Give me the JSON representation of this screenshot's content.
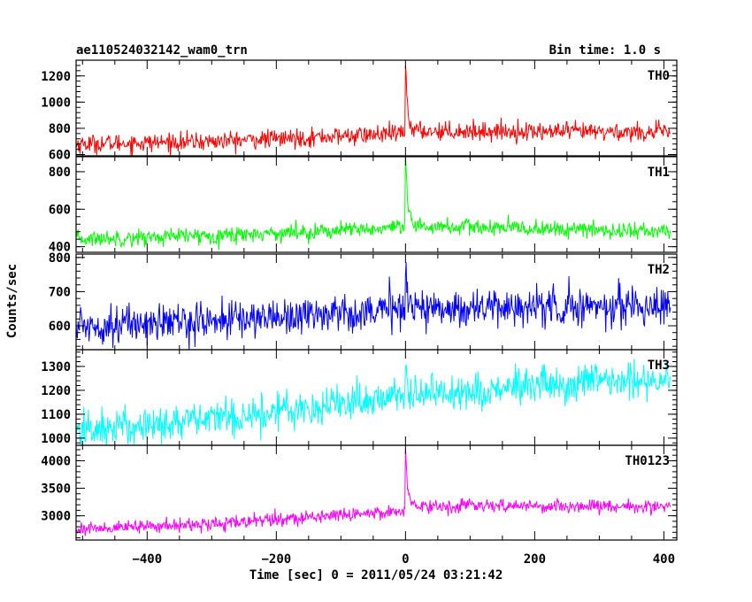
{
  "header": {
    "title": "ae110524032142_wam0_trn",
    "bin_time": "Bin time: 1.0 s"
  },
  "chart_data": {
    "type": "line",
    "shared_x": true,
    "xlabel": "Time [sec] 0 = 2011/05/24 03:21:42",
    "ylabel": "Counts/sec",
    "xlim": [
      -510,
      420
    ],
    "xticks": [
      -400,
      -200,
      0,
      200,
      400
    ],
    "grid": false,
    "panels": [
      {
        "name": "TH0",
        "color": "#ff0000",
        "ylim": [
          590,
          1320
        ],
        "yticks": [
          600,
          800,
          1000,
          1200
        ],
        "baseline": [
          [
            -510,
            680
          ],
          [
            -300,
            700
          ],
          [
            0,
            760
          ],
          [
            15,
            780
          ],
          [
            410,
            770
          ]
        ],
        "noise": 35,
        "burst": {
          "t0": 0,
          "peak": 1300,
          "decay": 3.5
        }
      },
      {
        "name": "TH1",
        "color": "#00ff00",
        "ylim": [
          370,
          880
        ],
        "yticks": [
          400,
          600,
          800
        ],
        "baseline": [
          [
            -510,
            440
          ],
          [
            -300,
            460
          ],
          [
            0,
            500
          ],
          [
            15,
            510
          ],
          [
            410,
            480
          ]
        ],
        "noise": 22,
        "burst": {
          "t0": 0,
          "peak": 870,
          "decay": 3.5
        }
      },
      {
        "name": "TH2",
        "color": "#0000ff",
        "ylim": [
          530,
          810
        ],
        "yticks": [
          600,
          700,
          800
        ],
        "baseline": [
          [
            -510,
            600
          ],
          [
            -300,
            615
          ],
          [
            0,
            650
          ],
          [
            410,
            660
          ]
        ],
        "noise": 28,
        "burst": {
          "t0": 0,
          "peak": 780,
          "decay": 4
        }
      },
      {
        "name": "TH3",
        "color": "#00ffff",
        "ylim": [
          970,
          1370
        ],
        "yticks": [
          1000,
          1100,
          1200,
          1300
        ],
        "baseline": [
          [
            -510,
            1030
          ],
          [
            -300,
            1080
          ],
          [
            0,
            1180
          ],
          [
            410,
            1250
          ]
        ],
        "noise": 40,
        "burst": {
          "t0": 0,
          "peak": 1290,
          "decay": 4
        }
      },
      {
        "name": "TH0123",
        "color": "#ff00ff",
        "ylim": [
          2560,
          4280
        ],
        "yticks": [
          3000,
          3500,
          4000
        ],
        "baseline": [
          [
            -510,
            2760
          ],
          [
            -300,
            2850
          ],
          [
            0,
            3100
          ],
          [
            15,
            3180
          ],
          [
            410,
            3170
          ]
        ],
        "noise": 60,
        "burst": {
          "t0": 0,
          "peak": 4200,
          "decay": 3.5
        }
      }
    ]
  }
}
